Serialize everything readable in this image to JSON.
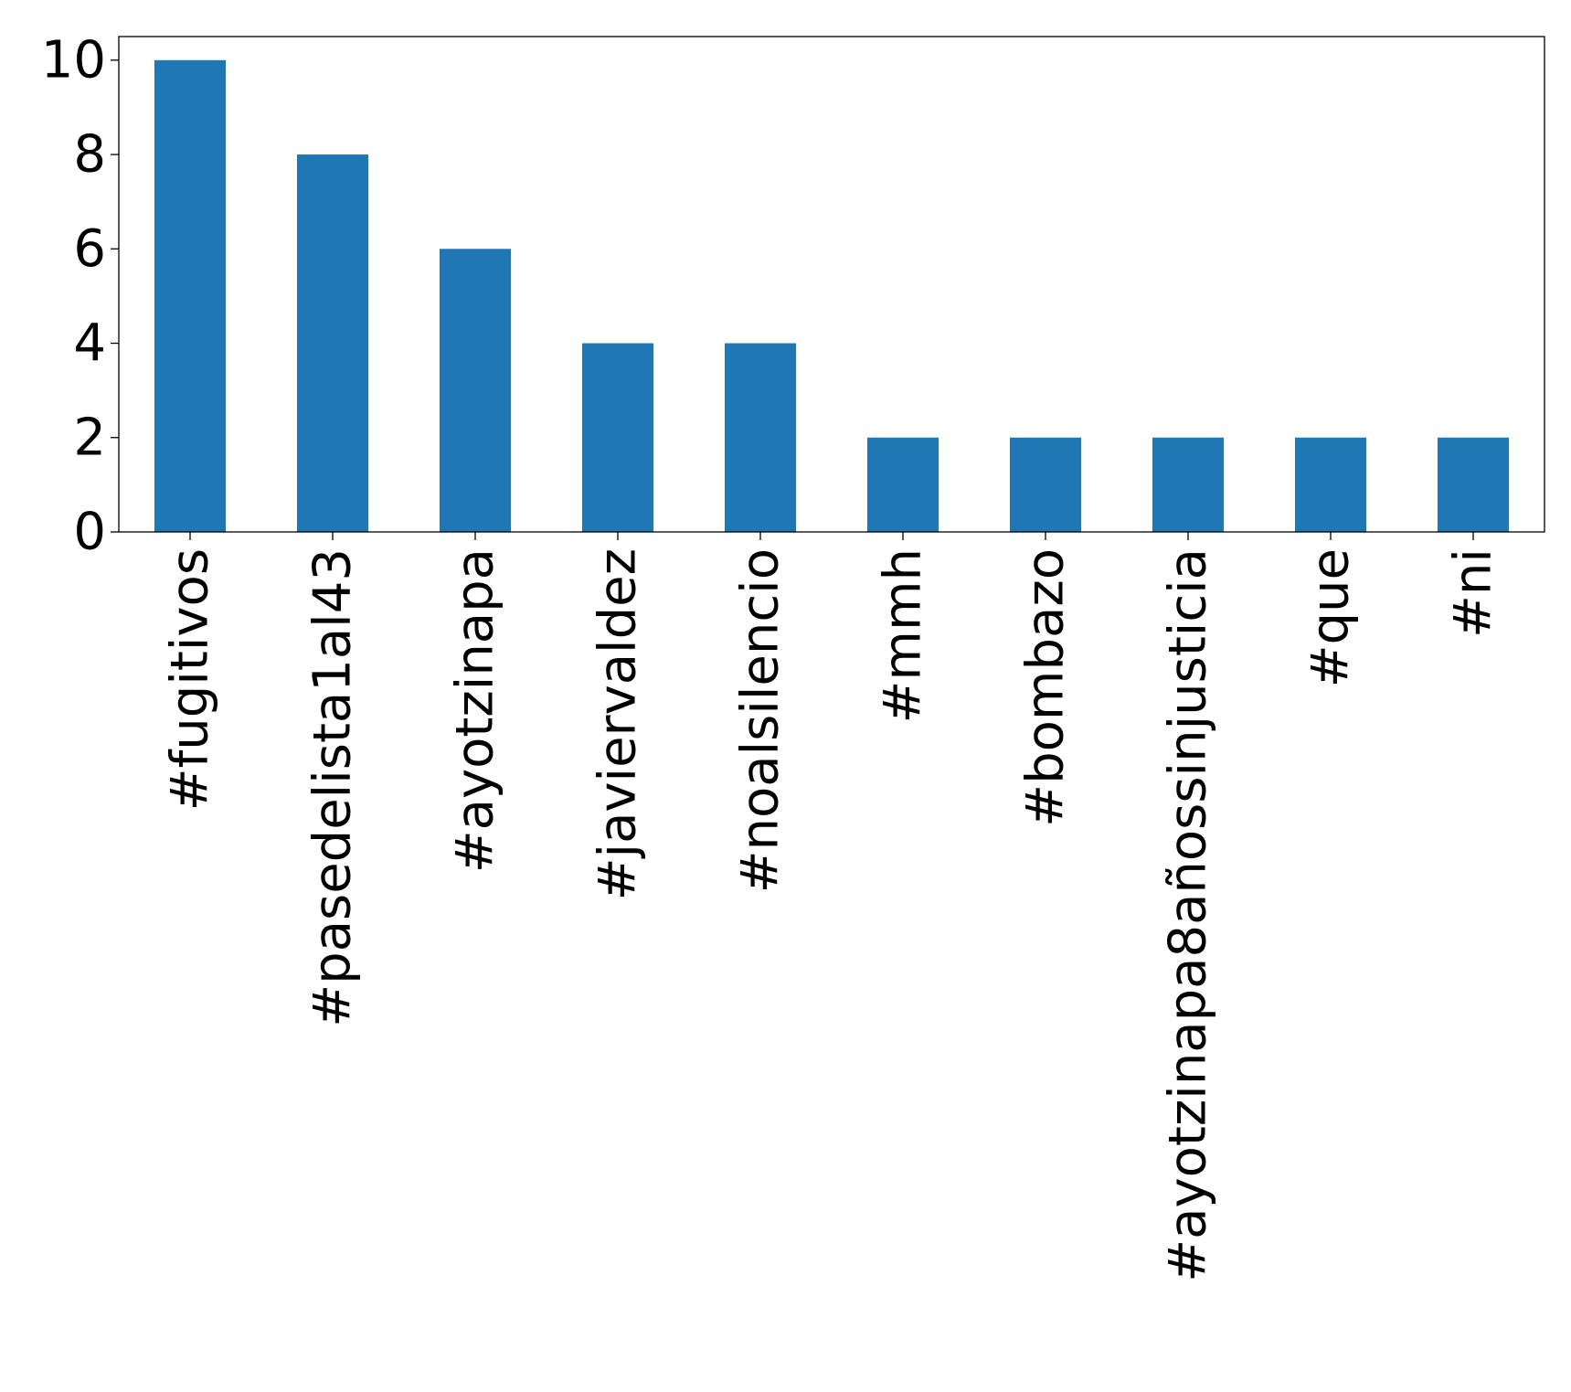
{
  "chart_data": {
    "type": "bar",
    "categories": [
      "#fugitivos",
      "#pasedelista1al43",
      "#ayotzinapa",
      "#javiervaldez",
      "#noalsilencio",
      "#mmh",
      "#bombazo",
      "#ayotzinapa8añossinjusticia",
      "#que",
      "#ni"
    ],
    "values": [
      10,
      8,
      6,
      4,
      4,
      2,
      2,
      2,
      2,
      2
    ],
    "title": "",
    "xlabel": "",
    "ylabel": "",
    "ylim": [
      0,
      10.5
    ],
    "yticks": [
      0,
      2,
      4,
      6,
      8,
      10
    ],
    "grid": false,
    "legend": "none",
    "bar_color": "#1f77b4"
  }
}
